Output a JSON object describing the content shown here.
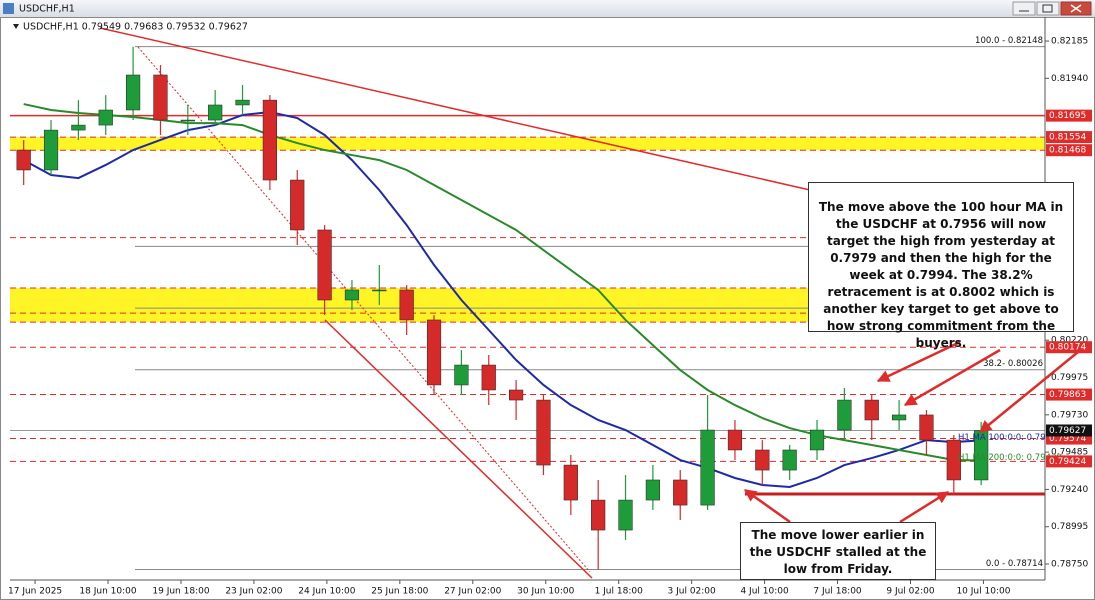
{
  "chart_data": {
    "type": "candlestick",
    "title": "USDCHF,H1",
    "subtitle": "USDCHF,H1  0.79549 0.79683 0.79532 0.79627",
    "x": [
      6,
      18,
      30,
      42,
      54,
      66,
      78,
      90,
      102,
      114,
      126,
      138,
      150,
      162,
      174,
      186,
      198,
      210,
      222,
      234,
      246,
      258,
      270,
      282,
      294,
      306,
      318,
      330,
      342,
      354,
      366,
      378,
      390,
      402,
      414,
      426
    ],
    "open": [
      0.81469,
      0.81338,
      0.816,
      0.81633,
      0.81732,
      0.81962,
      0.81666,
      0.81666,
      0.81765,
      0.81797,
      0.81272,
      0.80944,
      0.80484,
      0.8055,
      0.8055,
      0.80353,
      0.79926,
      0.80057,
      0.79893,
      0.79827,
      0.794,
      0.7917,
      0.78973,
      0.7917,
      0.79302,
      0.79137,
      0.7963,
      0.79499,
      0.79367,
      0.79499,
      0.7963,
      0.79827,
      0.79696,
      0.79729,
      0.79564,
      0.79302
    ],
    "high": [
      0.81535,
      0.81666,
      0.81797,
      0.8183,
      0.82148,
      0.82027,
      0.81765,
      0.81863,
      0.81896,
      0.8183,
      0.81338,
      0.80976,
      0.80615,
      0.80714,
      0.80582,
      0.80385,
      0.80155,
      0.80123,
      0.79958,
      0.7986,
      0.79466,
      0.79302,
      0.79334,
      0.794,
      0.79367,
      0.7986,
      0.79696,
      0.79564,
      0.79532,
      0.79696,
      0.79906,
      0.7986,
      0.79827,
      0.79761,
      0.79597,
      0.79683
    ],
    "low": [
      0.81239,
      0.81305,
      0.81535,
      0.81568,
      0.81666,
      0.81568,
      0.81568,
      0.81633,
      0.81699,
      0.81206,
      0.80845,
      0.80385,
      0.80418,
      0.80451,
      0.80254,
      0.7986,
      0.7986,
      0.79794,
      0.79696,
      0.79334,
      0.79072,
      0.78714,
      0.78908,
      0.79105,
      0.79039,
      0.79105,
      0.79433,
      0.79269,
      0.79302,
      0.79433,
      0.79564,
      0.79564,
      0.7963,
      0.79466,
      0.79203,
      0.79269
    ],
    "close": [
      0.81338,
      0.816,
      0.81633,
      0.81732,
      0.81962,
      0.81666,
      0.81666,
      0.81765,
      0.81797,
      0.81272,
      0.80944,
      0.80484,
      0.8055,
      0.8055,
      0.80353,
      0.79926,
      0.80057,
      0.79893,
      0.79827,
      0.794,
      0.7917,
      0.78973,
      0.7917,
      0.79302,
      0.79137,
      0.7963,
      0.79499,
      0.79367,
      0.79499,
      0.7963,
      0.79827,
      0.79696,
      0.79729,
      0.79564,
      0.79302,
      0.79627
    ],
    "up_color": "#1e9c3a",
    "down_color": "#d42a2a",
    "series": [
      {
        "name": "H1 MA 100:0:0: 0.79562",
        "color": "#1f2aa6",
        "values": [
          0.81403,
          0.81305,
          0.81285,
          0.81371,
          0.81469,
          0.81535,
          0.816,
          0.81633,
          0.81699,
          0.81719,
          0.81679,
          0.81568,
          0.81403,
          0.81206,
          0.80976,
          0.80714,
          0.80484,
          0.80287,
          0.8009,
          0.79926,
          0.79794,
          0.79696,
          0.7963,
          0.79532,
          0.79433,
          0.79381,
          0.79315,
          0.79269,
          0.79256,
          0.79315,
          0.794,
          0.79446,
          0.79499,
          0.79564,
          0.79551,
          0.79562
        ]
      },
      {
        "name": "H1 MA 200:0:0: 0.79430",
        "color": "#2a8a2a",
        "values": [
          0.81771,
          0.81732,
          0.81712,
          0.81699,
          0.81686,
          0.81666,
          0.81646,
          0.81646,
          0.81633,
          0.81568,
          0.81515,
          0.81469,
          0.81436,
          0.81403,
          0.81338,
          0.81239,
          0.81141,
          0.81042,
          0.80944,
          0.80812,
          0.80681,
          0.8055,
          0.80353,
          0.80188,
          0.80024,
          0.79893,
          0.79794,
          0.79709,
          0.79643,
          0.79597,
          0.79564,
          0.79532,
          0.79499,
          0.79466,
          0.79433,
          0.7943
        ]
      }
    ],
    "xlim": [
      0,
      454
    ],
    "ylim": [
      0.78645,
      0.8231
    ],
    "xticks": [
      {
        "value": 11,
        "label": "17 Jun 2025"
      },
      {
        "value": 43,
        "label": "18 Jun 10:00"
      },
      {
        "value": 75,
        "label": "19 Jun 18:00"
      },
      {
        "value": 107,
        "label": "23 Jun 02:00"
      },
      {
        "value": 139,
        "label": "24 Jun 10:00"
      },
      {
        "value": 171,
        "label": "25 Jun 18:00"
      },
      {
        "value": 203,
        "label": "27 Jun 02:00"
      },
      {
        "value": 235,
        "label": "30 Jun 10:00"
      },
      {
        "value": 267,
        "label": "1 Jul 18:00"
      },
      {
        "value": 299,
        "label": "3 Jul 02:00"
      },
      {
        "value": 331,
        "label": "4 Jul 10:00"
      },
      {
        "value": 363,
        "label": "7 Jul 18:00"
      },
      {
        "value": 395,
        "label": "9 Jul 02:00"
      },
      {
        "value": 427,
        "label": "10 Jul 10:00"
      }
    ],
    "yticks": [
      0.82185,
      {
        "value": 0.8194,
        "label": "0.81940"
      },
      {
        "value": 0.8022,
        "label": "0.80220"
      },
      0.79975,
      {
        "value": 0.7973,
        "label": "0.79730"
      },
      0.79485,
      {
        "value": 0.7924,
        "label": "0.79240"
      },
      0.78995,
      {
        "value": 0.7875,
        "label": "0.78750"
      }
    ],
    "levels": [
      0.81695,
      0.81554,
      0.81468,
      0.80174,
      0.79863,
      0.79574,
      0.79424
    ],
    "level_color": "#e02b2b",
    "dashed_levels": [
      0.80894,
      0.80563,
      0.80398,
      0.80339
    ],
    "yellow_bands": [
      [
        0.81554,
        0.81468
      ],
      [
        0.80563,
        0.80339
      ]
    ],
    "current_price": 0.79627,
    "support": 0.7921,
    "fib_levels": [
      {
        "value": 0.82148,
        "label": "100.0 - 0.82148"
      },
      {
        "value": 0.80836
      },
      {
        "value": 0.80431
      },
      {
        "value": 0.80026,
        "label": "38.2- 0.80026"
      },
      {
        "value": 0.78714,
        "label": "0.0 - 0.78714"
      }
    ],
    "annotations": [
      "The move above the 100 hour MA in the USDCHF at 0.7956 will now target the high from yesterday at 0.7979 and then the high for the week at 0.7994. The 38.2% retracement is at 0.8002 which is another key target to get above to how strong commitment from the buyers.",
      "The move lower earlier in the USDCHF stalled at the low from Friday."
    ]
  }
}
